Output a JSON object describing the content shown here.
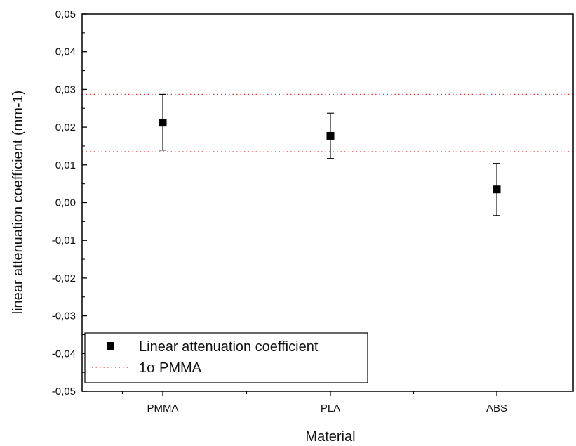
{
  "chart_data": {
    "type": "scatter",
    "xlabel": "Material",
    "ylabel": "linear attenuation coefficient (mm-1)",
    "categories": [
      "PMMA",
      "PLA",
      "ABS"
    ],
    "ylim": [
      -0.05,
      0.05
    ],
    "yticks": [
      "0,05",
      "0,04",
      "0,03",
      "0,02",
      "0,01",
      "0,00",
      "-0,01",
      "-0,02",
      "-0,03",
      "-0,04",
      "-0,05"
    ],
    "ytick_values": [
      0.05,
      0.04,
      0.03,
      0.02,
      0.01,
      0.0,
      -0.01,
      -0.02,
      -0.03,
      -0.04,
      -0.05
    ],
    "series": [
      {
        "name": "Linear attenuation coefficient",
        "values": [
          0.0212,
          0.0177,
          0.0035
        ],
        "err_low": [
          0.0139,
          0.0117,
          -0.0034
        ],
        "err_high": [
          0.0287,
          0.0237,
          0.0104
        ],
        "color": "#000000",
        "marker": "square"
      }
    ],
    "reference_lines": {
      "label": "1σ PMMA",
      "values": [
        0.0287,
        0.0135
      ],
      "color": "#e8323c",
      "style": "dotted"
    },
    "legend_placement": "bottom-left",
    "grid": false
  }
}
